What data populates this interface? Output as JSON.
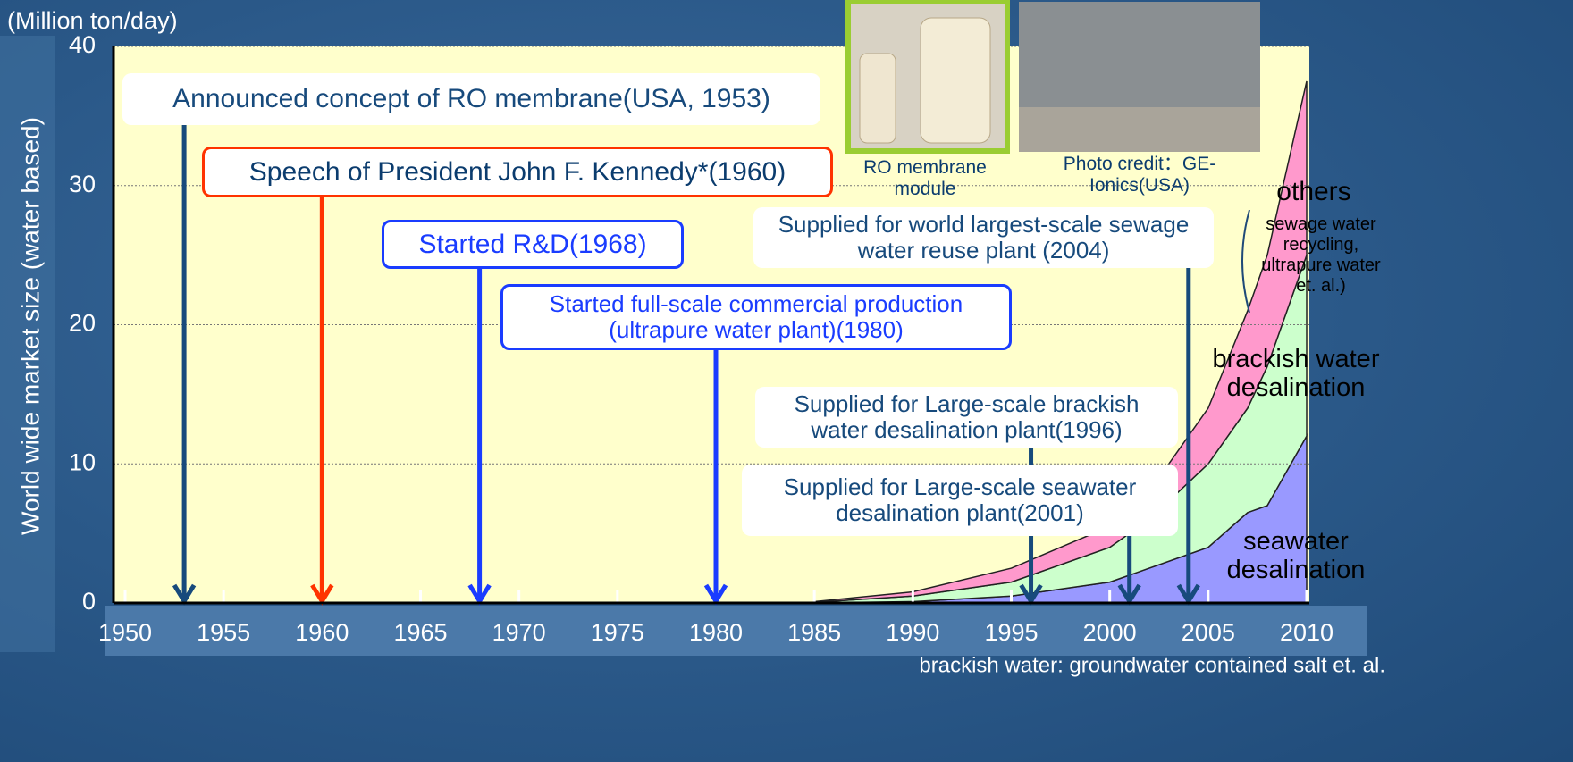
{
  "chart_data": {
    "type": "area",
    "stacked": true,
    "unit_label": "(Million ton/day)",
    "ylabel": "World wide market size (water based)",
    "x": [
      1985,
      1990,
      1995,
      2000,
      2002,
      2005,
      2007,
      2008,
      2010
    ],
    "series": [
      {
        "name": "seawater desalination",
        "color": "#9999ff",
        "values": [
          0,
          0.1,
          0.5,
          1.5,
          2.5,
          4,
          6.5,
          7,
          12
        ]
      },
      {
        "name": "brackish water desalination",
        "color": "#ccffcc",
        "values": [
          0.05,
          0.4,
          1,
          2.5,
          3.5,
          6,
          7.5,
          10,
          13
        ]
      },
      {
        "name": "others",
        "color": "#ff99cc",
        "description": "sewage water recycling, ultrapure water et. al.)",
        "values": [
          0.05,
          0.3,
          1,
          1.5,
          2,
          4,
          7,
          8,
          12.5
        ]
      }
    ],
    "xlim": [
      1950,
      2010
    ],
    "ylim": [
      0,
      40
    ],
    "xticks": [
      1950,
      1955,
      1960,
      1965,
      1970,
      1975,
      1980,
      1985,
      1990,
      1995,
      2000,
      2005,
      2010
    ],
    "yticks": [
      0,
      10,
      20,
      30,
      40
    ],
    "grid": true,
    "annotations": [
      {
        "text": "Announced concept of RO membrane(USA, 1953)",
        "year": 1953,
        "color": "#174a7c"
      },
      {
        "text": "Speech of President John F. Kennedy*(1960)",
        "year": 1960,
        "color": "#ff3300"
      },
      {
        "text": "Started R&D(1968)",
        "year": 1968,
        "color": "#1a3cff"
      },
      {
        "text": "Started full-scale commercial production (ultrapure water plant)(1980)",
        "year": 1980,
        "color": "#1a3cff"
      },
      {
        "text": "Supplied for Large-scale brackish water desalination plant(1996)",
        "year": 1996,
        "color": "#174a7c"
      },
      {
        "text": "Supplied for Large-scale seawater desalination plant(2001)",
        "year": 2001,
        "color": "#174a7c"
      },
      {
        "text": "Supplied for world largest-scale sewage water reuse plant (2004)",
        "year": 2004,
        "color": "#174a7c"
      }
    ],
    "footnote": "brackish water: groundwater contained salt et. al."
  },
  "images": [
    {
      "caption": "RO membrane module"
    },
    {
      "caption": "Photo credit：GE-Ionics(USA)"
    }
  ]
}
